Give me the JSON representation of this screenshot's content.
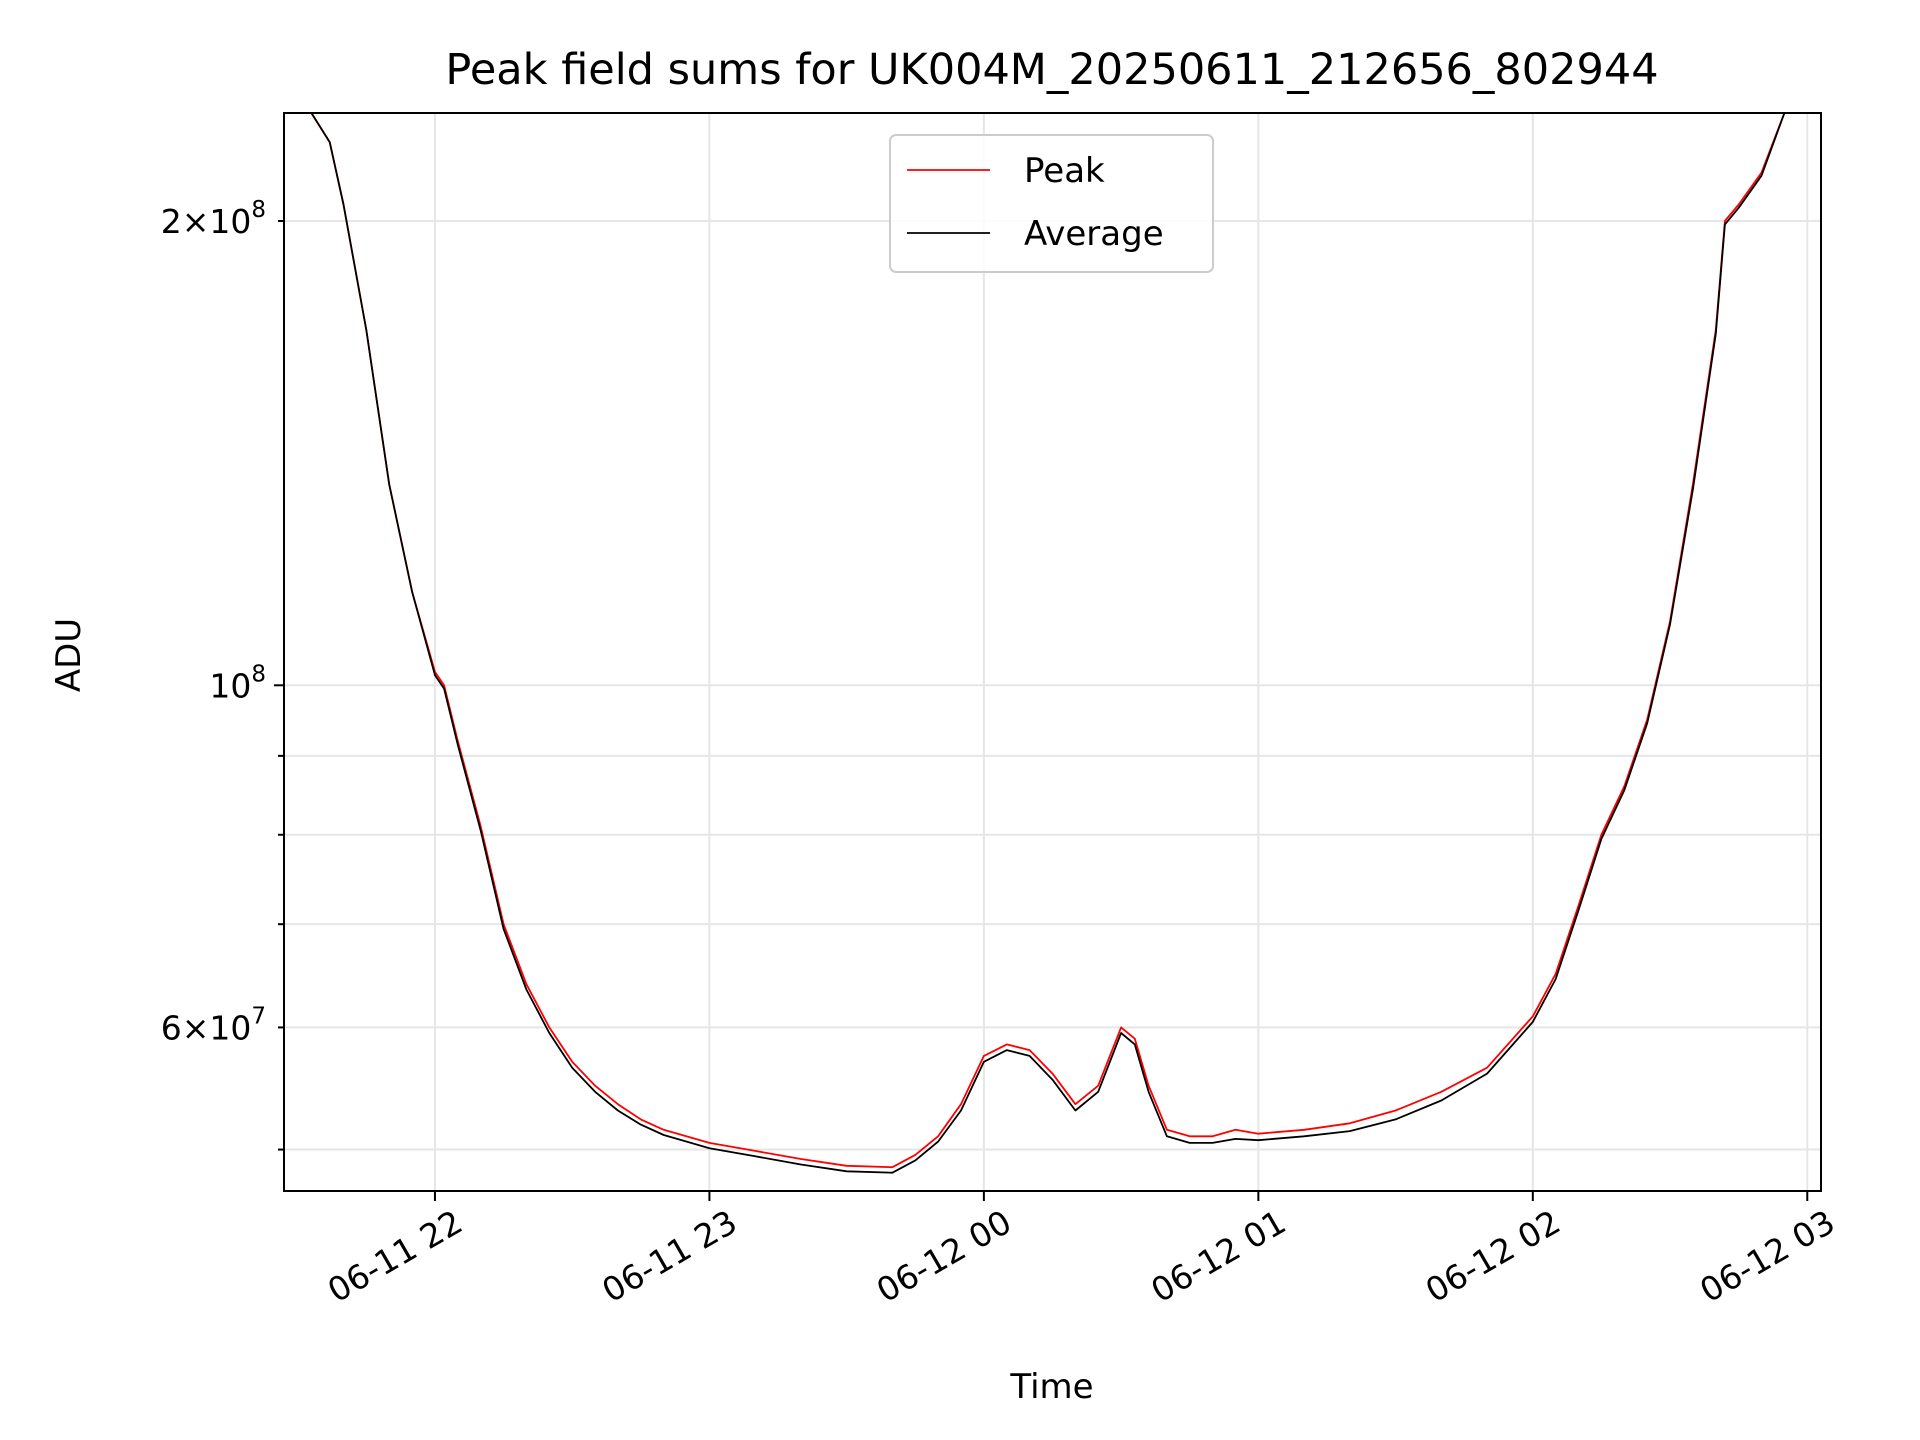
{
  "chart_data": {
    "type": "line",
    "title": "Peak field sums for UK004M_20250611_212656_802944",
    "xlabel": "Time",
    "ylabel": "ADU",
    "yscale": "log",
    "grid": true,
    "legend_placement": "upper center",
    "xlim": [
      "2025-06-11 21:27",
      "2025-06-12 03:03"
    ],
    "ylim": [
      47000000,
      235000000
    ],
    "x_ticks": [
      "06-11 22",
      "06-11 23",
      "06-12 00",
      "06-12 01",
      "06-12 02",
      "06-12 03"
    ],
    "x_tick_values": [
      "2025-06-11 22:00",
      "2025-06-11 23:00",
      "2025-06-12 00:00",
      "2025-06-12 01:00",
      "2025-06-12 02:00",
      "2025-06-12 03:00"
    ],
    "y_ticks_major": [
      {
        "value": 100000000,
        "mantissa": "",
        "base": "10",
        "exp": "8"
      }
    ],
    "y_ticks_minor": [
      {
        "value": 60000000,
        "mantissa": "6×",
        "base": "10",
        "exp": "7",
        "labeled": true
      },
      {
        "value": 70000000,
        "labeled": false
      },
      {
        "value": 80000000,
        "labeled": false
      },
      {
        "value": 90000000,
        "labeled": false
      },
      {
        "value": 200000000,
        "mantissa": "2×",
        "base": "10",
        "exp": "8",
        "labeled": true
      },
      {
        "value": 50000000,
        "labeled": false
      }
    ],
    "series": [
      {
        "name": "Peak",
        "color": "#ff0000",
        "x": [
          "2025-06-11 21:27",
          "2025-06-11 21:33",
          "2025-06-11 21:37",
          "2025-06-11 21:40",
          "2025-06-11 21:45",
          "2025-06-11 21:50",
          "2025-06-11 21:55",
          "2025-06-11 22:00",
          "2025-06-11 22:02",
          "2025-06-11 22:05",
          "2025-06-11 22:10",
          "2025-06-11 22:15",
          "2025-06-11 22:20",
          "2025-06-11 22:25",
          "2025-06-11 22:30",
          "2025-06-11 22:35",
          "2025-06-11 22:40",
          "2025-06-11 22:45",
          "2025-06-11 22:50",
          "2025-06-11 23:00",
          "2025-06-11 23:10",
          "2025-06-11 23:20",
          "2025-06-11 23:30",
          "2025-06-11 23:40",
          "2025-06-11 23:45",
          "2025-06-11 23:50",
          "2025-06-11 23:55",
          "2025-06-12 00:00",
          "2025-06-12 00:05",
          "2025-06-12 00:10",
          "2025-06-12 00:15",
          "2025-06-12 00:20",
          "2025-06-12 00:25",
          "2025-06-12 00:30",
          "2025-06-12 00:33",
          "2025-06-12 00:36",
          "2025-06-12 00:40",
          "2025-06-12 00:45",
          "2025-06-12 00:50",
          "2025-06-12 00:55",
          "2025-06-12 01:00",
          "2025-06-12 01:10",
          "2025-06-12 01:20",
          "2025-06-12 01:30",
          "2025-06-12 01:40",
          "2025-06-12 01:50",
          "2025-06-12 02:00",
          "2025-06-12 02:05",
          "2025-06-12 02:10",
          "2025-06-12 02:15",
          "2025-06-12 02:20",
          "2025-06-12 02:25",
          "2025-06-12 02:30",
          "2025-06-12 02:35",
          "2025-06-12 02:40",
          "2025-06-12 02:42",
          "2025-06-12 02:45",
          "2025-06-12 02:50",
          "2025-06-12 02:55",
          "2025-06-12 03:03"
        ],
        "y": [
          235000000,
          235000000,
          225000000,
          205000000,
          170000000,
          135000000,
          115000000,
          102000000,
          100000000,
          92000000,
          81000000,
          70000000,
          64000000,
          60000000,
          57000000,
          55000000,
          53500000,
          52300000,
          51500000,
          50500000,
          49900000,
          49300000,
          48800000,
          48700000,
          49600000,
          51000000,
          53500000,
          57500000,
          58500000,
          58000000,
          56000000,
          53500000,
          55000000,
          60000000,
          59000000,
          55000000,
          51500000,
          51000000,
          51000000,
          51500000,
          51200000,
          51500000,
          52000000,
          53000000,
          54500000,
          56500000,
          61000000,
          65000000,
          72000000,
          80000000,
          86000000,
          95000000,
          110000000,
          135000000,
          170000000,
          200000000,
          205000000,
          215000000,
          235000000,
          235000000
        ]
      },
      {
        "name": "Average",
        "color": "#000000",
        "x": [
          "2025-06-11 21:27",
          "2025-06-11 21:33",
          "2025-06-11 21:37",
          "2025-06-11 21:40",
          "2025-06-11 21:45",
          "2025-06-11 21:50",
          "2025-06-11 21:55",
          "2025-06-11 22:00",
          "2025-06-11 22:02",
          "2025-06-11 22:05",
          "2025-06-11 22:10",
          "2025-06-11 22:15",
          "2025-06-11 22:20",
          "2025-06-11 22:25",
          "2025-06-11 22:30",
          "2025-06-11 22:35",
          "2025-06-11 22:40",
          "2025-06-11 22:45",
          "2025-06-11 22:50",
          "2025-06-11 23:00",
          "2025-06-11 23:10",
          "2025-06-11 23:20",
          "2025-06-11 23:30",
          "2025-06-11 23:40",
          "2025-06-11 23:45",
          "2025-06-11 23:50",
          "2025-06-11 23:55",
          "2025-06-12 00:00",
          "2025-06-12 00:05",
          "2025-06-12 00:10",
          "2025-06-12 00:15",
          "2025-06-12 00:20",
          "2025-06-12 00:25",
          "2025-06-12 00:30",
          "2025-06-12 00:33",
          "2025-06-12 00:36",
          "2025-06-12 00:40",
          "2025-06-12 00:45",
          "2025-06-12 00:50",
          "2025-06-12 00:55",
          "2025-06-12 01:00",
          "2025-06-12 01:10",
          "2025-06-12 01:20",
          "2025-06-12 01:30",
          "2025-06-12 01:40",
          "2025-06-12 01:50",
          "2025-06-12 02:00",
          "2025-06-12 02:05",
          "2025-06-12 02:10",
          "2025-06-12 02:15",
          "2025-06-12 02:20",
          "2025-06-12 02:25",
          "2025-06-12 02:30",
          "2025-06-12 02:35",
          "2025-06-12 02:40",
          "2025-06-12 02:42",
          "2025-06-12 02:45",
          "2025-06-12 02:50",
          "2025-06-12 02:55",
          "2025-06-12 03:03"
        ],
        "y": [
          235000000,
          235000000,
          225000000,
          205000000,
          170000000,
          135000000,
          115000000,
          101500000,
          99500000,
          91500000,
          80500000,
          69500000,
          63500000,
          59500000,
          56500000,
          54500000,
          53000000,
          51900000,
          51100000,
          50100000,
          49500000,
          48900000,
          48400000,
          48300000,
          49200000,
          50600000,
          53000000,
          57000000,
          58000000,
          57500000,
          55500000,
          53000000,
          54500000,
          59500000,
          58500000,
          54500000,
          51000000,
          50500000,
          50500000,
          50800000,
          50700000,
          51000000,
          51400000,
          52300000,
          53800000,
          56000000,
          60500000,
          64500000,
          71500000,
          79500000,
          85500000,
          94500000,
          109500000,
          134000000,
          169000000,
          199000000,
          204000000,
          214000000,
          235000000,
          235000000
        ]
      }
    ]
  }
}
